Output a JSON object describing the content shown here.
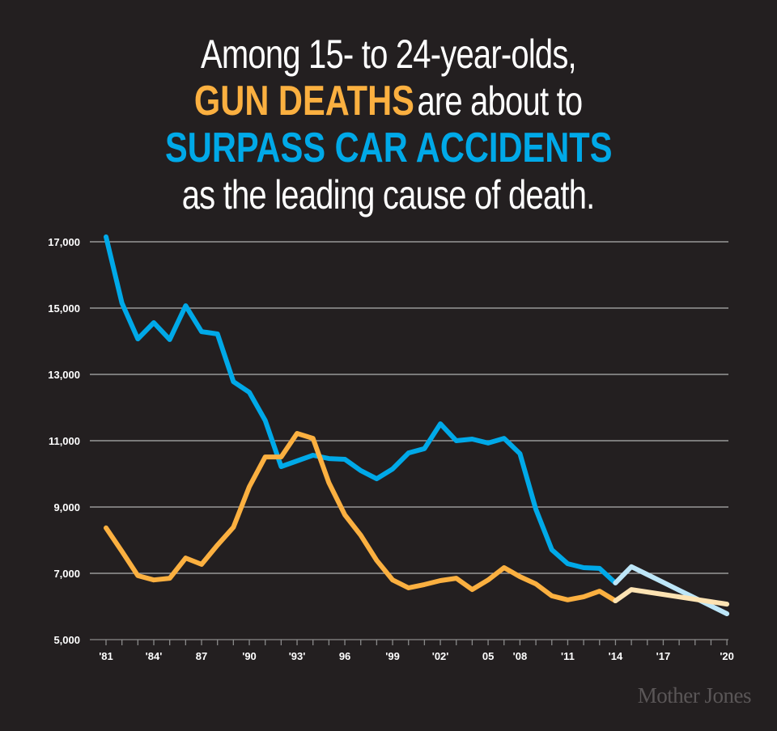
{
  "title": {
    "line1": "Among 15- to 24-year-olds,",
    "line2_highlight": "GUN DEATHS",
    "line2_rest": "are about to",
    "line3_highlight": "SURPASS CAR ACCIDENTS",
    "line4": "as the leading cause of death."
  },
  "logo": "Mother Jones",
  "colors": {
    "background": "#231f20",
    "car": "#00a9e8",
    "gun": "#fbb040",
    "car_projected": "#bde6f8",
    "gun_projected": "#fde3b3",
    "grid": "#b0b0b0"
  },
  "chart_data": {
    "type": "line",
    "title": "",
    "xlabel": "",
    "ylabel": "",
    "ylim": [
      5000,
      17000
    ],
    "yticks": [
      5000,
      7000,
      9000,
      11000,
      13000,
      15000,
      17000
    ],
    "ytick_labels": [
      "5,000",
      "7,000",
      "9,000",
      "11,000",
      "13,000",
      "15,000",
      "17,000"
    ],
    "grid": true,
    "categories": [
      "'81",
      "",
      "",
      "'84'",
      "",
      "",
      "87",
      "",
      "",
      "'90",
      "",
      "",
      "'93'",
      "",
      "",
      "96",
      "",
      "",
      "'99",
      "",
      "",
      "'02'",
      "",
      "",
      "05",
      "",
      "'08",
      "",
      "",
      "'11",
      "",
      "",
      "'14",
      "",
      "",
      "'17",
      "",
      "",
      "",
      "'20"
    ],
    "series": [
      {
        "key": "car",
        "values": [
          17150,
          15150,
          14070,
          14560,
          14050,
          15070,
          14290,
          14220,
          12780,
          12460,
          11610,
          10220,
          10390,
          10560,
          10460,
          10440,
          10100,
          9850,
          10150,
          10630,
          10760,
          11510,
          11000,
          11050,
          10930,
          11070,
          10610,
          8930,
          7710,
          7290,
          7170,
          7150,
          6710,
          null,
          null,
          null,
          null,
          null,
          null,
          null
        ]
      },
      {
        "key": "gun",
        "values": [
          8370,
          7660,
          6930,
          6800,
          6850,
          7460,
          7270,
          7850,
          8390,
          9610,
          10510,
          10510,
          11220,
          11070,
          9730,
          8760,
          8150,
          7390,
          6800,
          6560,
          6660,
          6780,
          6850,
          6510,
          6800,
          7170,
          6900,
          6680,
          6320,
          6200,
          6290,
          6460,
          6170,
          null,
          null,
          null,
          null,
          null,
          null,
          null
        ]
      },
      {
        "key": "car_projected",
        "values": [
          null,
          null,
          null,
          null,
          null,
          null,
          null,
          null,
          null,
          null,
          null,
          null,
          null,
          null,
          null,
          null,
          null,
          null,
          null,
          null,
          null,
          null,
          null,
          null,
          null,
          null,
          null,
          null,
          null,
          null,
          null,
          null,
          6710,
          7200,
          6963,
          6727,
          6490,
          6253,
          6017,
          5780
        ]
      },
      {
        "key": "gun_projected",
        "values": [
          null,
          null,
          null,
          null,
          null,
          null,
          null,
          null,
          null,
          null,
          null,
          null,
          null,
          null,
          null,
          null,
          null,
          null,
          null,
          null,
          null,
          null,
          null,
          null,
          null,
          null,
          null,
          null,
          null,
          null,
          null,
          null,
          6170,
          6510,
          6437,
          6363,
          6290,
          6217,
          6143,
          6070
        ]
      }
    ]
  }
}
